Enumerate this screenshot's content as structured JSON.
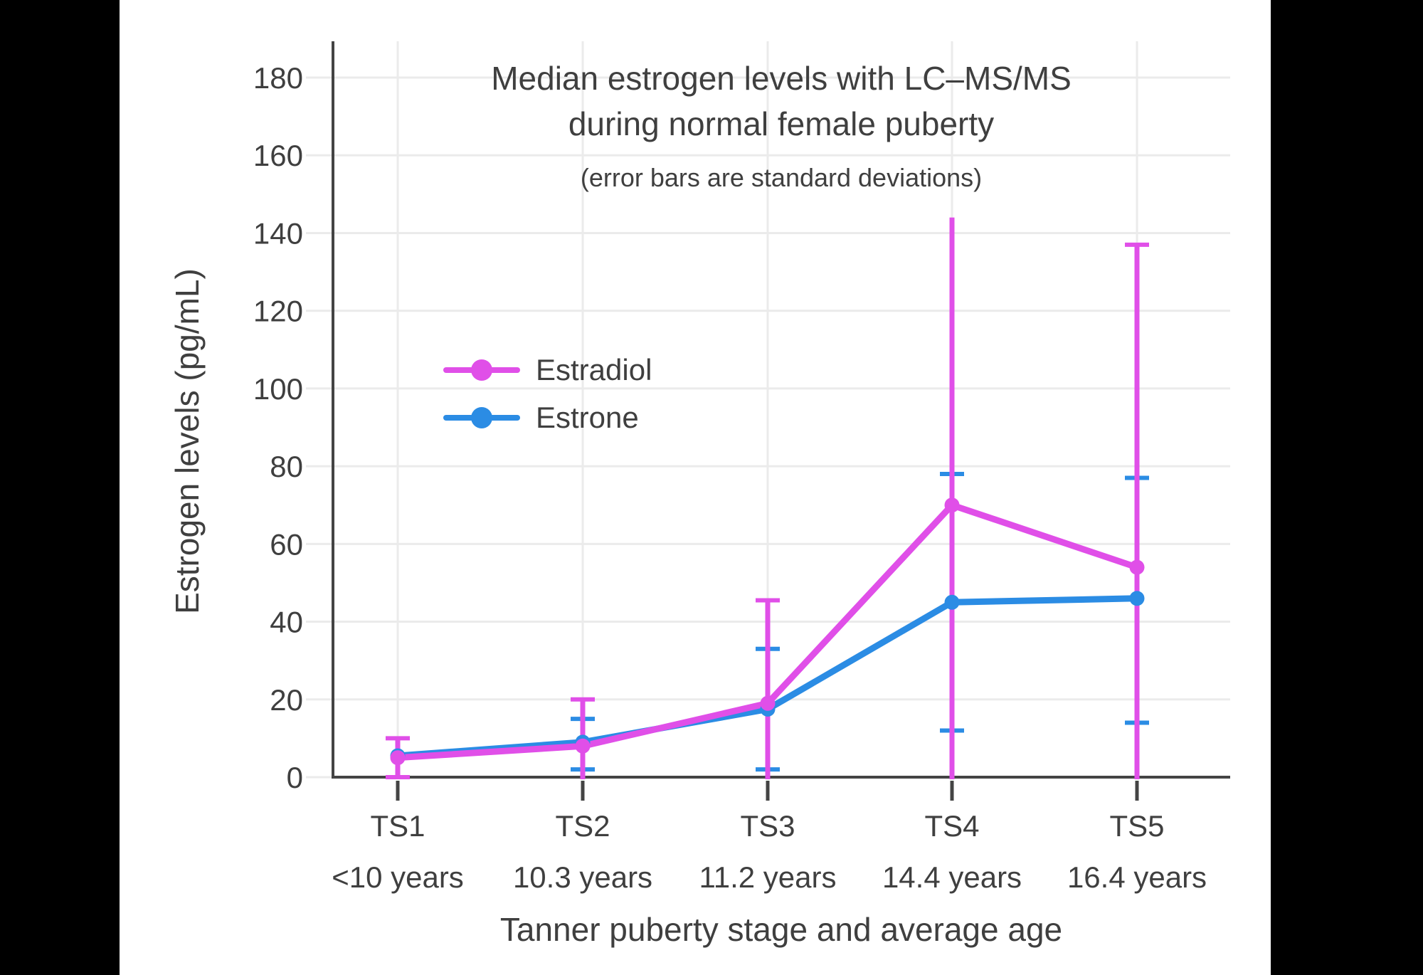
{
  "chart_data": {
    "type": "line",
    "title_lines": [
      "Median estrogen levels with LC–MS/MS",
      "during normal female puberty"
    ],
    "subtitle": "(error bars are standard deviations)",
    "xlabel": "Tanner puberty stage and average age",
    "ylabel": "Estrogen levels (pg/mL)",
    "categories": [
      "TS1",
      "TS2",
      "TS3",
      "TS4",
      "TS5"
    ],
    "category_ages": [
      "<10 years",
      "10.3 years",
      "11.2 years",
      "14.4 years",
      "16.4 years"
    ],
    "yticks": [
      0,
      20,
      40,
      60,
      80,
      100,
      120,
      140,
      160,
      180
    ],
    "ylim": [
      0,
      189
    ],
    "grid": true,
    "legend_position": "inside-upper-left",
    "series": [
      {
        "name": "Estradiol",
        "color": "#E04FE8",
        "values": [
          5,
          8,
          19,
          70,
          54
        ],
        "error_high": [
          10,
          20,
          45.5,
          144,
          137
        ],
        "error_low": [
          0,
          0,
          0,
          0,
          0
        ],
        "cap_high": [
          true,
          true,
          true,
          false,
          true
        ],
        "cap_low": [
          true,
          false,
          false,
          false,
          false
        ],
        "note": "Lower error bars at TS2–TS5 extend below 0 and are clipped at the x-axis; TS4 upper bar reaches 144 with no cap drawn."
      },
      {
        "name": "Estrone",
        "color": "#2B8CE4",
        "values": [
          5.5,
          9,
          17.5,
          45,
          46
        ],
        "error_high": [
          null,
          15,
          33,
          78,
          77
        ],
        "error_low": [
          null,
          2,
          2,
          12,
          14
        ],
        "cap_high": [
          false,
          true,
          true,
          true,
          true
        ],
        "cap_low": [
          false,
          true,
          true,
          true,
          true
        ],
        "note": "TS1 marker and error bar are hidden behind the Estradiol point; error-bar vertical lines coincide with Estradiol's so only blue caps are visible."
      }
    ],
    "style": {
      "text_color": "#3F3F3F",
      "axis_color": "#444444",
      "grid_color": "#EBEBEB",
      "background": "#FFFFFF",
      "letterbox": "#000000"
    }
  }
}
